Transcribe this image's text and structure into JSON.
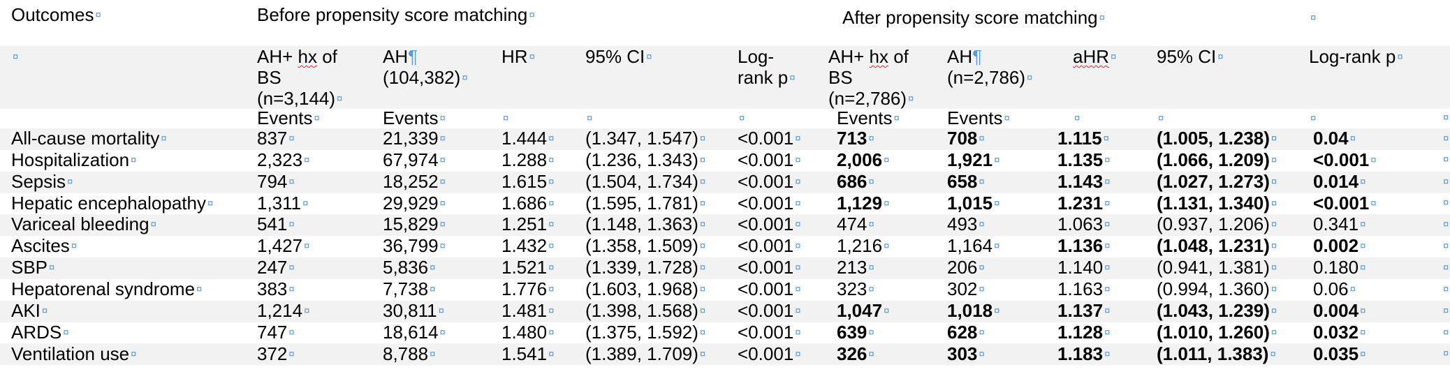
{
  "header": {
    "outcomes_label": "Outcomes",
    "before_label": "Before propensity score matching",
    "after_label": "After propensity score matching"
  },
  "subheader": {
    "before_group1": [
      "AH+ ",
      "hx",
      " of",
      "BS",
      "(n=3,144)"
    ],
    "before_group2": [
      "AH",
      "(104,382)"
    ],
    "hr": "HR",
    "ci_before": "95% CI",
    "logrank_before": [
      "Log-",
      "rank p"
    ],
    "after_group1": [
      "AH+ ",
      "hx",
      " of",
      "BS",
      "(n=2,786)"
    ],
    "after_group2": [
      "AH",
      "(n=2,786)"
    ],
    "ahr": "aHR",
    "ci_after": "95% CI",
    "logrank_after": "Log-rank p"
  },
  "events_label": "Events",
  "rows": [
    {
      "outcome": "All-cause mortality",
      "b1": "837",
      "b2": "21,339",
      "hr": "1.444",
      "ci": "(1.347, 1.547)",
      "p": "<0.001",
      "a1": "713",
      "a2": "708",
      "ahr": "1.115",
      "aci": "(1.005, 1.238)",
      "ap": "0.04",
      "sig": true
    },
    {
      "outcome": "Hospitalization",
      "b1": "2,323",
      "b2": "67,974",
      "hr": "1.288",
      "ci": "(1.236, 1.343)",
      "p": "<0.001",
      "a1": "2,006",
      "a2": "1,921",
      "ahr": "1.135",
      "aci": "(1.066, 1.209)",
      "ap": "<0.001",
      "sig": true
    },
    {
      "outcome": "Sepsis",
      "b1": "794",
      "b2": "18,252",
      "hr": "1.615",
      "ci": "(1.504, 1.734)",
      "p": "<0.001",
      "a1": "686",
      "a2": "658",
      "ahr": "1.143",
      "aci": "(1.027, 1.273)",
      "ap": "0.014",
      "sig": true
    },
    {
      "outcome": "Hepatic encephalopathy",
      "b1": "1,311",
      "b2": "29,929",
      "hr": "1.686",
      "ci": "(1.595, 1.781)",
      "p": "<0.001",
      "a1": "1,129",
      "a2": "1,015",
      "ahr": "1.231",
      "aci": "(1.131, 1.340)",
      "ap": "<0.001",
      "sig": true
    },
    {
      "outcome": "Variceal bleeding",
      "b1": "541",
      "b2": "15,829",
      "hr": "1.251",
      "ci": "(1.148, 1.363)",
      "p": "<0.001",
      "a1": "474",
      "a2": "493",
      "ahr": "1.063",
      "aci": "(0.937, 1.206)",
      "ap": "0.341",
      "sig": false
    },
    {
      "outcome": "Ascites",
      "b1": "1,427",
      "b2": "36,799",
      "hr": "1.432",
      "ci": "(1.358, 1.509)",
      "p": "<0.001",
      "a1": "1,216",
      "a2": "1,164",
      "ahr": "1.136",
      "aci": "(1.048, 1.231)",
      "ap": "0.002",
      "sig": true,
      "partial": true
    },
    {
      "outcome": "SBP",
      "b1": "247",
      "b2": "5,836",
      "hr": "1.521",
      "ci": "(1.339, 1.728)",
      "p": "<0.001",
      "a1": "213",
      "a2": "206",
      "ahr": "1.140",
      "aci": "(0.941, 1.381)",
      "ap": "0.180",
      "sig": false
    },
    {
      "outcome": "Hepatorenal syndrome",
      "b1": "383",
      "b2": "7,738",
      "hr": "1.776",
      "ci": "(1.603, 1.968)",
      "p": "<0.001",
      "a1": "323",
      "a2": "302",
      "ahr": "1.163",
      "aci": "(0.994, 1.360)",
      "ap": "0.06",
      "sig": false
    },
    {
      "outcome": "AKI",
      "b1": "1,214",
      "b2": "30,811",
      "hr": "1.481",
      "ci": "(1.398, 1.568)",
      "p": "<0.001",
      "a1": "1,047",
      "a2": "1,018",
      "ahr": "1.137",
      "aci": "(1.043, 1.239)",
      "ap": "0.004",
      "sig": true
    },
    {
      "outcome": "ARDS",
      "b1": "747",
      "b2": "18,614",
      "hr": "1.480",
      "ci": "(1.375, 1.592)",
      "p": "<0.001",
      "a1": "639",
      "a2": "628",
      "ahr": "1.128",
      "aci": "(1.010, 1.260)",
      "ap": "0.032",
      "sig": true
    },
    {
      "outcome": "Ventilation use",
      "b1": "372",
      "b2": "8,788",
      "hr": "1.541",
      "ci": "(1.389, 1.709)",
      "p": "<0.001",
      "a1": "326",
      "a2": "303",
      "ahr": "1.183",
      "aci": "(1.011, 1.383)",
      "ap": "0.035",
      "sig": true
    }
  ],
  "colors": {
    "format_mark": "#5a9ad6",
    "row_band": "#f2f2f2",
    "spell_underline": "#d12b2b"
  }
}
